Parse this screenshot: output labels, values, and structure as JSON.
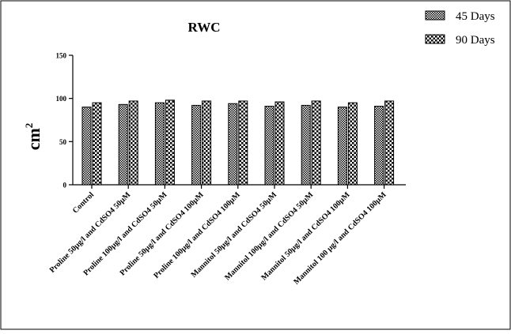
{
  "chart_data": {
    "type": "bar",
    "title": "RWC",
    "ylabel_base": "cm",
    "ylabel_sup": "2",
    "xlabel": "",
    "ylim": [
      0,
      150
    ],
    "yticks": [
      "0",
      "50",
      "100",
      "150"
    ],
    "categories": [
      "Control",
      "Proline 50µg/l and CdSO4 50µM",
      "Proline 100µg/l and CdSO4 50µM",
      "Proline 50µg/l and CdSO4 100µM",
      "Proline 100µg/l and CdSO4 100µM",
      "Mannitol 50µg/l and CdSO4 50µM",
      "Mannitol 100µg/l and CdSO4 50µM",
      "Mannitol 50µg/l and CdSO4 100µM",
      "Mannitol 100 µg/l and CdSO4 100µM"
    ],
    "series": [
      {
        "name": "45 Days",
        "values": [
          90,
          93,
          95,
          92,
          94,
          91,
          92,
          90,
          91
        ],
        "pattern": "dots"
      },
      {
        "name": "90 Days",
        "values": [
          95,
          97,
          98,
          97,
          97,
          96,
          97,
          95,
          97
        ],
        "pattern": "checker"
      }
    ],
    "legend_position": "top-right",
    "grid": false
  }
}
